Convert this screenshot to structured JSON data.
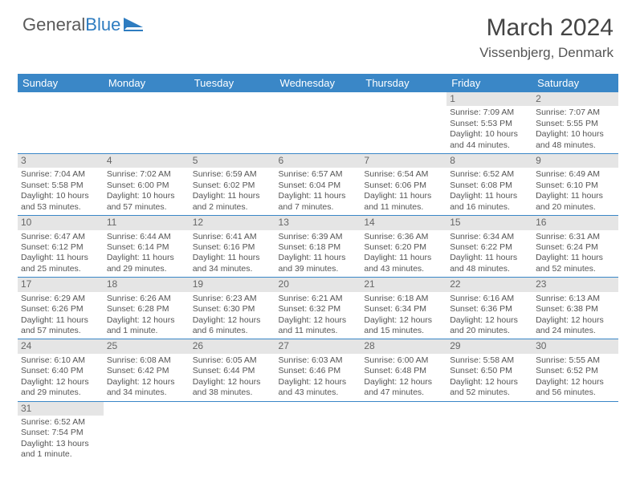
{
  "logo": {
    "text1": "General",
    "text2": "Blue"
  },
  "title": "March 2024",
  "location": "Vissenbjerg, Denmark",
  "dayHeaders": [
    "Sunday",
    "Monday",
    "Tuesday",
    "Wednesday",
    "Thursday",
    "Friday",
    "Saturday"
  ],
  "colors": {
    "headerBg": "#3a87c7",
    "headerText": "#ffffff",
    "dayNumBg": "#e5e5e5",
    "rowBorder": "#3a87c7",
    "logoAccent": "#2e7cc0"
  },
  "weeks": [
    [
      null,
      null,
      null,
      null,
      null,
      {
        "n": "1",
        "sr": "Sunrise: 7:09 AM",
        "ss": "Sunset: 5:53 PM",
        "dl": "Daylight: 10 hours and 44 minutes."
      },
      {
        "n": "2",
        "sr": "Sunrise: 7:07 AM",
        "ss": "Sunset: 5:55 PM",
        "dl": "Daylight: 10 hours and 48 minutes."
      }
    ],
    [
      {
        "n": "3",
        "sr": "Sunrise: 7:04 AM",
        "ss": "Sunset: 5:58 PM",
        "dl": "Daylight: 10 hours and 53 minutes."
      },
      {
        "n": "4",
        "sr": "Sunrise: 7:02 AM",
        "ss": "Sunset: 6:00 PM",
        "dl": "Daylight: 10 hours and 57 minutes."
      },
      {
        "n": "5",
        "sr": "Sunrise: 6:59 AM",
        "ss": "Sunset: 6:02 PM",
        "dl": "Daylight: 11 hours and 2 minutes."
      },
      {
        "n": "6",
        "sr": "Sunrise: 6:57 AM",
        "ss": "Sunset: 6:04 PM",
        "dl": "Daylight: 11 hours and 7 minutes."
      },
      {
        "n": "7",
        "sr": "Sunrise: 6:54 AM",
        "ss": "Sunset: 6:06 PM",
        "dl": "Daylight: 11 hours and 11 minutes."
      },
      {
        "n": "8",
        "sr": "Sunrise: 6:52 AM",
        "ss": "Sunset: 6:08 PM",
        "dl": "Daylight: 11 hours and 16 minutes."
      },
      {
        "n": "9",
        "sr": "Sunrise: 6:49 AM",
        "ss": "Sunset: 6:10 PM",
        "dl": "Daylight: 11 hours and 20 minutes."
      }
    ],
    [
      {
        "n": "10",
        "sr": "Sunrise: 6:47 AM",
        "ss": "Sunset: 6:12 PM",
        "dl": "Daylight: 11 hours and 25 minutes."
      },
      {
        "n": "11",
        "sr": "Sunrise: 6:44 AM",
        "ss": "Sunset: 6:14 PM",
        "dl": "Daylight: 11 hours and 29 minutes."
      },
      {
        "n": "12",
        "sr": "Sunrise: 6:41 AM",
        "ss": "Sunset: 6:16 PM",
        "dl": "Daylight: 11 hours and 34 minutes."
      },
      {
        "n": "13",
        "sr": "Sunrise: 6:39 AM",
        "ss": "Sunset: 6:18 PM",
        "dl": "Daylight: 11 hours and 39 minutes."
      },
      {
        "n": "14",
        "sr": "Sunrise: 6:36 AM",
        "ss": "Sunset: 6:20 PM",
        "dl": "Daylight: 11 hours and 43 minutes."
      },
      {
        "n": "15",
        "sr": "Sunrise: 6:34 AM",
        "ss": "Sunset: 6:22 PM",
        "dl": "Daylight: 11 hours and 48 minutes."
      },
      {
        "n": "16",
        "sr": "Sunrise: 6:31 AM",
        "ss": "Sunset: 6:24 PM",
        "dl": "Daylight: 11 hours and 52 minutes."
      }
    ],
    [
      {
        "n": "17",
        "sr": "Sunrise: 6:29 AM",
        "ss": "Sunset: 6:26 PM",
        "dl": "Daylight: 11 hours and 57 minutes."
      },
      {
        "n": "18",
        "sr": "Sunrise: 6:26 AM",
        "ss": "Sunset: 6:28 PM",
        "dl": "Daylight: 12 hours and 1 minute."
      },
      {
        "n": "19",
        "sr": "Sunrise: 6:23 AM",
        "ss": "Sunset: 6:30 PM",
        "dl": "Daylight: 12 hours and 6 minutes."
      },
      {
        "n": "20",
        "sr": "Sunrise: 6:21 AM",
        "ss": "Sunset: 6:32 PM",
        "dl": "Daylight: 12 hours and 11 minutes."
      },
      {
        "n": "21",
        "sr": "Sunrise: 6:18 AM",
        "ss": "Sunset: 6:34 PM",
        "dl": "Daylight: 12 hours and 15 minutes."
      },
      {
        "n": "22",
        "sr": "Sunrise: 6:16 AM",
        "ss": "Sunset: 6:36 PM",
        "dl": "Daylight: 12 hours and 20 minutes."
      },
      {
        "n": "23",
        "sr": "Sunrise: 6:13 AM",
        "ss": "Sunset: 6:38 PM",
        "dl": "Daylight: 12 hours and 24 minutes."
      }
    ],
    [
      {
        "n": "24",
        "sr": "Sunrise: 6:10 AM",
        "ss": "Sunset: 6:40 PM",
        "dl": "Daylight: 12 hours and 29 minutes."
      },
      {
        "n": "25",
        "sr": "Sunrise: 6:08 AM",
        "ss": "Sunset: 6:42 PM",
        "dl": "Daylight: 12 hours and 34 minutes."
      },
      {
        "n": "26",
        "sr": "Sunrise: 6:05 AM",
        "ss": "Sunset: 6:44 PM",
        "dl": "Daylight: 12 hours and 38 minutes."
      },
      {
        "n": "27",
        "sr": "Sunrise: 6:03 AM",
        "ss": "Sunset: 6:46 PM",
        "dl": "Daylight: 12 hours and 43 minutes."
      },
      {
        "n": "28",
        "sr": "Sunrise: 6:00 AM",
        "ss": "Sunset: 6:48 PM",
        "dl": "Daylight: 12 hours and 47 minutes."
      },
      {
        "n": "29",
        "sr": "Sunrise: 5:58 AM",
        "ss": "Sunset: 6:50 PM",
        "dl": "Daylight: 12 hours and 52 minutes."
      },
      {
        "n": "30",
        "sr": "Sunrise: 5:55 AM",
        "ss": "Sunset: 6:52 PM",
        "dl": "Daylight: 12 hours and 56 minutes."
      }
    ],
    [
      {
        "n": "31",
        "sr": "Sunrise: 6:52 AM",
        "ss": "Sunset: 7:54 PM",
        "dl": "Daylight: 13 hours and 1 minute."
      },
      null,
      null,
      null,
      null,
      null,
      null
    ]
  ]
}
